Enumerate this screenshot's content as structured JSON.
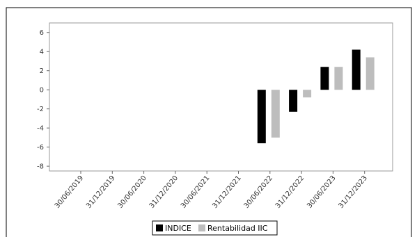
{
  "chart_data": {
    "type": "bar",
    "title": "",
    "xlabel": "",
    "ylabel": "",
    "categories": [
      "30/06/2019",
      "31/12/2019",
      "30/06/2020",
      "31/12/2020",
      "30/06/2021",
      "31/12/2021",
      "30/06/2022",
      "31/12/2022",
      "30/06/2023",
      "31/12/2023"
    ],
    "series": [
      {
        "name": "INDICE",
        "color": "#000000",
        "values": [
          null,
          null,
          null,
          null,
          null,
          null,
          -5.6,
          -2.3,
          2.4,
          4.2
        ]
      },
      {
        "name": "Rentabilidad IIC",
        "color": "#bdbdbd",
        "values": [
          null,
          null,
          null,
          null,
          null,
          null,
          -5.0,
          -0.8,
          2.4,
          3.4
        ]
      }
    ],
    "ylim": [
      -8.5,
      7
    ],
    "yticks": [
      6,
      4,
      2,
      0,
      -2,
      -4,
      -6,
      -8
    ],
    "grid": false,
    "legend_position": "bottom-center"
  }
}
